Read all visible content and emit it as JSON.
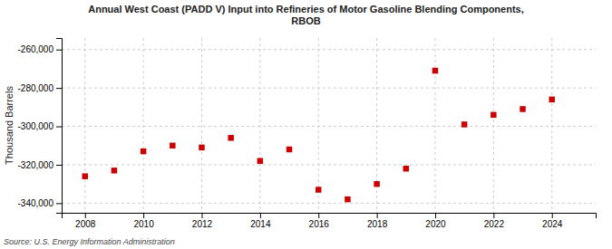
{
  "chart_data": {
    "type": "scatter",
    "title": "Annual West Coast (PADD V) Input into Refineries of Motor Gasoline Blending Components,\nRBOB",
    "ylabel": "Thousand Barrels",
    "source": "Source: U.S. Energy Information Administration",
    "x": [
      2008,
      2009,
      2010,
      2011,
      2012,
      2013,
      2014,
      2015,
      2016,
      2017,
      2018,
      2019,
      2020,
      2021,
      2022,
      2023,
      2024
    ],
    "values": [
      -326000,
      -323000,
      -313000,
      -310000,
      -311000,
      -306000,
      -318000,
      -312000,
      -333000,
      -338000,
      -330000,
      -322000,
      -271000,
      -299000,
      -294000,
      -291000,
      -286000
    ],
    "color": "#cc0000",
    "marker": "square",
    "xlim": [
      2007.2,
      2025.5
    ],
    "xticks": [
      2008,
      2010,
      2012,
      2014,
      2016,
      2018,
      2020,
      2022,
      2024
    ],
    "ylim": [
      -345000,
      -254000
    ],
    "yticks": [
      {
        "value": -340000,
        "label": "-340,000"
      },
      {
        "value": -320000,
        "label": "-320,000"
      },
      {
        "value": -300000,
        "label": "-300,000"
      },
      {
        "value": -280000,
        "label": "-280,000"
      },
      {
        "value": -260000,
        "label": "-260,000"
      }
    ],
    "grid": true
  }
}
